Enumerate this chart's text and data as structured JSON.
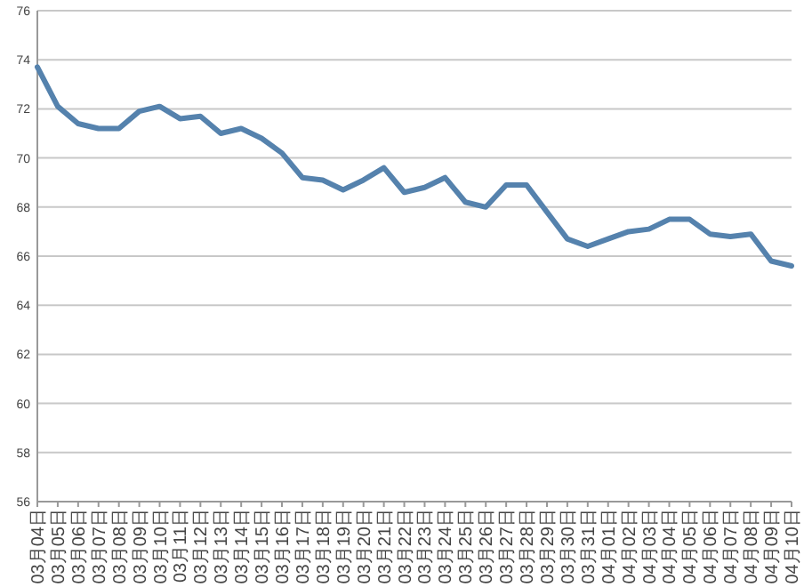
{
  "chart_data": {
    "type": "line",
    "categories": [
      "03月04日",
      "03月05日",
      "03月06日",
      "03月07日",
      "03月08日",
      "03月09日",
      "03月10日",
      "03月11日",
      "03月12日",
      "03月13日",
      "03月14日",
      "03月15日",
      "03月16日",
      "03月17日",
      "03月18日",
      "03月19日",
      "03月20日",
      "03月21日",
      "03月22日",
      "03月23日",
      "03月24日",
      "03月25日",
      "03月26日",
      "03月27日",
      "03月28日",
      "03月29日",
      "03月30日",
      "03月31日",
      "04月01日",
      "04月02日",
      "04月03日",
      "04月04日",
      "04月05日",
      "04月06日",
      "04月07日",
      "04月08日",
      "04月09日",
      "04月10日"
    ],
    "series": [
      {
        "color": "#5582ad",
        "values": [
          73.7,
          72.1,
          71.4,
          71.2,
          71.2,
          71.9,
          72.1,
          71.6,
          71.7,
          71.0,
          71.2,
          70.8,
          70.2,
          69.2,
          69.1,
          68.7,
          69.1,
          69.6,
          68.6,
          68.8,
          69.2,
          68.2,
          68.0,
          68.9,
          68.9,
          67.8,
          66.7,
          66.4,
          66.7,
          67.0,
          67.1,
          67.5,
          67.5,
          66.9,
          66.8,
          66.9,
          65.8,
          65.6
        ]
      }
    ],
    "ylim": [
      56,
      76
    ],
    "yticks": [
      56,
      58,
      60,
      62,
      64,
      66,
      68,
      70,
      72,
      74,
      76
    ],
    "grid": "y",
    "marker": "none",
    "line_style": "solid"
  }
}
